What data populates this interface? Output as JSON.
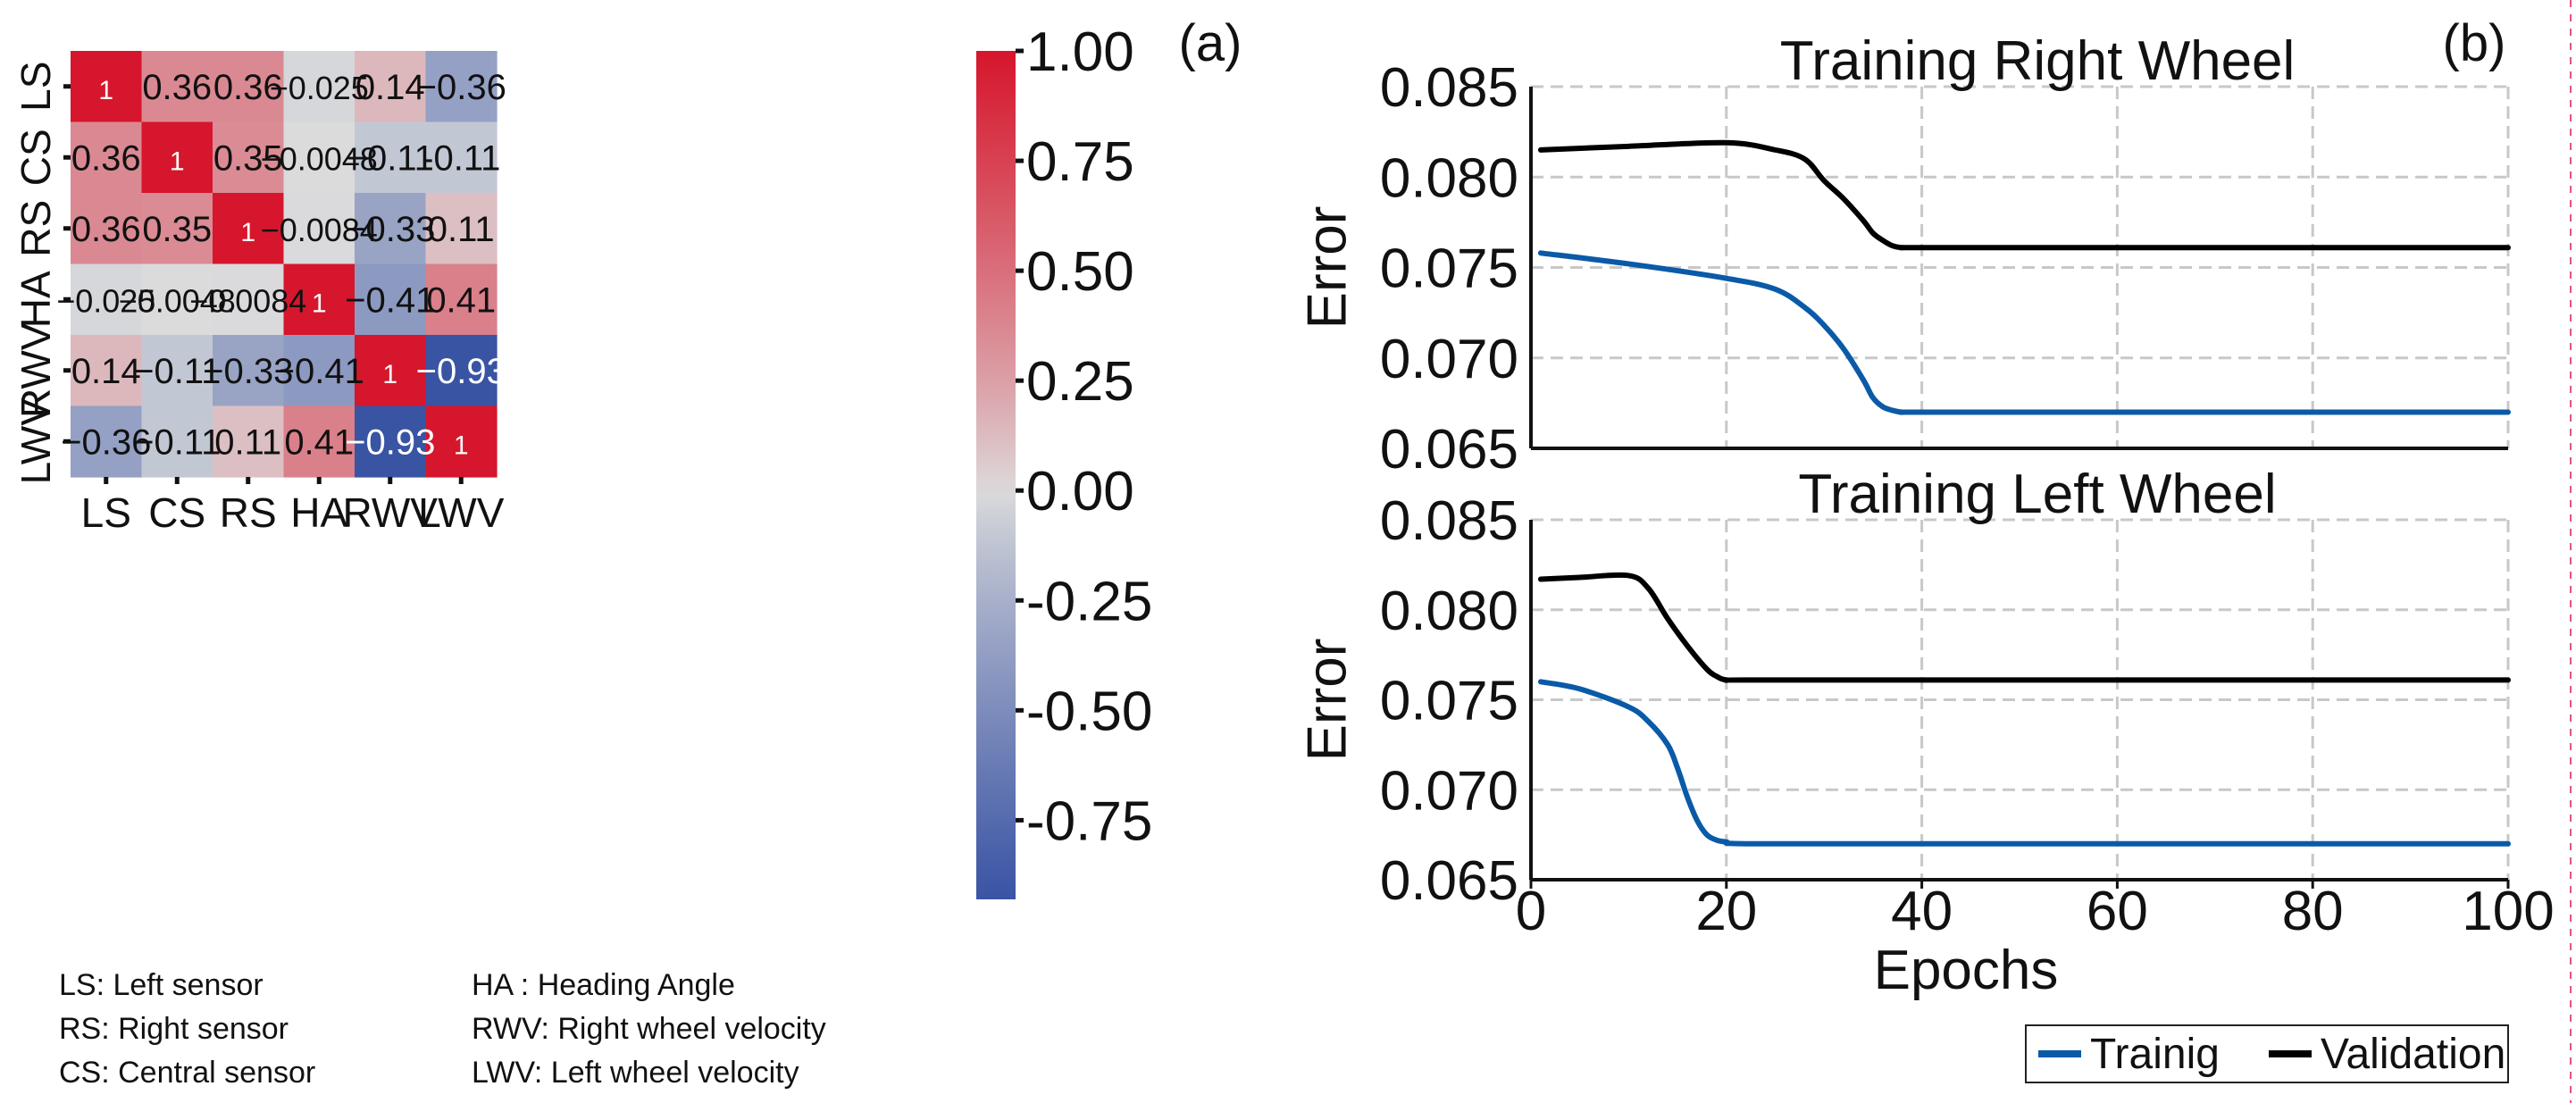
{
  "chart_data": [
    {
      "type": "heatmap",
      "panel_label": "(a)",
      "rows": [
        "LS",
        "CS",
        "RS",
        "HA",
        "RWV",
        "LWV"
      ],
      "cols": [
        "LS",
        "CS",
        "RS",
        "HA",
        "RWV",
        "LWV"
      ],
      "values": [
        [
          1,
          0.36,
          0.36,
          -0.025,
          0.14,
          -0.36
        ],
        [
          0.36,
          1,
          0.35,
          -0.0048,
          -0.11,
          -0.11
        ],
        [
          0.36,
          0.35,
          1,
          -0.0084,
          -0.33,
          0.11
        ],
        [
          -0.025,
          -0.0048,
          -0.0084,
          1,
          -0.41,
          0.41
        ],
        [
          0.14,
          -0.11,
          -0.33,
          -0.41,
          1,
          -0.93
        ],
        [
          -0.36,
          -0.11,
          0.11,
          0.41,
          -0.93,
          1
        ]
      ],
      "cell_labels": [
        [
          "1",
          "0.36",
          "0.36",
          "−0.025",
          "0.14",
          "−0.36"
        ],
        [
          "0.36",
          "1",
          "0.35",
          "−0.0048",
          "−0.11",
          "-0.11"
        ],
        [
          "0.36",
          "0.35",
          "1",
          "−0.0084",
          "−0.33",
          "0.11"
        ],
        [
          "−0.025",
          "−0.0048",
          "−0.0084",
          "1",
          "−0.41",
          "0.41"
        ],
        [
          "0.14",
          "−0.11",
          "−0.33",
          "−0.41",
          "1",
          "−0.93"
        ],
        [
          "−0.36",
          "−0.11",
          "0.11",
          "0.41",
          "−0.93",
          "1"
        ]
      ],
      "colorbar": {
        "range": [
          -0.93,
          1.0
        ],
        "ticks": [
          1.0,
          0.75,
          0.5,
          0.25,
          0.0,
          -0.25,
          -0.5,
          -0.75
        ],
        "tick_labels": [
          "1.00",
          "0.75",
          "0.50",
          "0.25",
          "0.00",
          "-0.25",
          "-0.50",
          "-0.75"
        ],
        "colors": {
          "low": "#3a54a4",
          "mid": "#dddddd",
          "high": "#d6162c"
        }
      },
      "legend_text": [
        [
          "LS: Left sensor",
          "HA   : Heading Angle"
        ],
        [
          "RS: Right sensor",
          "RWV: Right wheel velocity"
        ],
        [
          "CS: Central sensor",
          "LWV: Left wheel velocity"
        ]
      ]
    },
    {
      "type": "line",
      "panel_label": "(b)",
      "title": "Training Right Wheel",
      "xlabel": "",
      "ylabel": "Error",
      "xlim": [
        0,
        100
      ],
      "ylim": [
        0.065,
        0.085
      ],
      "yticks": [
        0.065,
        0.07,
        0.075,
        0.08,
        0.085
      ],
      "ytick_labels": [
        "0.065",
        "0.070",
        "0.075",
        "0.080",
        "0.085"
      ],
      "grid": true,
      "series": [
        {
          "name": "Validation",
          "color": "#000000",
          "x": [
            1,
            10,
            20,
            25,
            28,
            30,
            32,
            34,
            35,
            36,
            37,
            38,
            40,
            60,
            80,
            100
          ],
          "y": [
            0.0815,
            0.0817,
            0.0819,
            0.0815,
            0.081,
            0.0798,
            0.0788,
            0.0776,
            0.0769,
            0.0765,
            0.0762,
            0.0761,
            0.0761,
            0.0761,
            0.0761,
            0.0761
          ]
        },
        {
          "name": "Trainig",
          "color": "#0a5aa8",
          "x": [
            1,
            10,
            20,
            25,
            28,
            30,
            32,
            34,
            35,
            36,
            37,
            38,
            40,
            60,
            80,
            100
          ],
          "y": [
            0.0758,
            0.0752,
            0.0744,
            0.0738,
            0.0728,
            0.0718,
            0.0705,
            0.0688,
            0.0678,
            0.0673,
            0.0671,
            0.067,
            0.067,
            0.067,
            0.067,
            0.067
          ]
        }
      ]
    },
    {
      "type": "line",
      "title": "Training Left Wheel",
      "xlabel": "Epochs",
      "ylabel": "Error",
      "xlim": [
        0,
        100
      ],
      "ylim": [
        0.065,
        0.085
      ],
      "xticks": [
        0,
        20,
        40,
        60,
        80,
        100
      ],
      "xtick_labels": [
        "0",
        "20",
        "40",
        "60",
        "80",
        "100"
      ],
      "yticks": [
        0.065,
        0.07,
        0.075,
        0.08,
        0.085
      ],
      "ytick_labels": [
        "0.065",
        "0.070",
        "0.075",
        "0.080",
        "0.085"
      ],
      "grid": true,
      "legend": [
        "Trainig",
        "Validation"
      ],
      "legend_position": "bottom-right",
      "series": [
        {
          "name": "Validation",
          "color": "#000000",
          "x": [
            1,
            5,
            10,
            12,
            14,
            16,
            18,
            19,
            20,
            22,
            40,
            60,
            80,
            100
          ],
          "y": [
            0.0817,
            0.0818,
            0.0819,
            0.0812,
            0.0795,
            0.078,
            0.0767,
            0.0763,
            0.0761,
            0.0761,
            0.0761,
            0.0761,
            0.0761,
            0.0761
          ]
        },
        {
          "name": "Trainig",
          "color": "#0a5aa8",
          "x": [
            1,
            5,
            10,
            12,
            14,
            15,
            16,
            17,
            18,
            19,
            20,
            22,
            40,
            60,
            80,
            100
          ],
          "y": [
            0.076,
            0.0756,
            0.0746,
            0.0738,
            0.0725,
            0.0712,
            0.0696,
            0.0683,
            0.0675,
            0.0672,
            0.0671,
            0.067,
            0.067,
            0.067,
            0.067,
            0.067
          ]
        }
      ]
    }
  ]
}
